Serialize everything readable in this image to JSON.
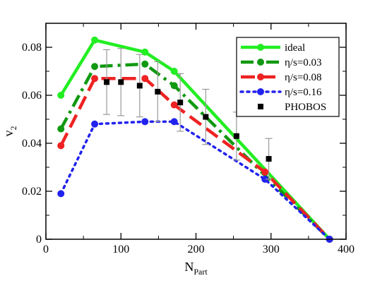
{
  "chart_data": {
    "type": "line",
    "xlabel": "N",
    "xlabel_sub": "Part",
    "ylabel": "v",
    "ylabel_sub": "2",
    "xlim": [
      0,
      400
    ],
    "ylim": [
      0,
      0.09
    ],
    "xticks": [
      0,
      100,
      200,
      300,
      400
    ],
    "xtick_labels": [
      "0",
      "100",
      "200",
      "300",
      "400"
    ],
    "yticks": [
      0,
      0.02,
      0.04,
      0.06,
      0.08
    ],
    "ytick_labels": [
      "0",
      "0.02",
      "0.04",
      "0.06",
      "0.08"
    ],
    "grid": false,
    "legend_position": "top-right",
    "series": [
      {
        "name": "ideal",
        "color": "#22ee22",
        "style": "solid",
        "marker": "circle",
        "x": [
          20,
          65,
          132,
          171,
          378
        ],
        "y": [
          0.06,
          0.083,
          0.078,
          0.07,
          0.0
        ]
      },
      {
        "name": "η/s=0.03",
        "color": "#119911",
        "style": "dashdot",
        "marker": "circle",
        "x": [
          20,
          65,
          132,
          171,
          378
        ],
        "y": [
          0.046,
          0.072,
          0.073,
          0.064,
          0.0
        ]
      },
      {
        "name": "η/s=0.08",
        "color": "#ee2222",
        "style": "dashed",
        "marker": "circle",
        "x": [
          20,
          65,
          132,
          171,
          292,
          378
        ],
        "y": [
          0.039,
          0.067,
          0.067,
          0.056,
          0.028,
          0.0
        ]
      },
      {
        "name": "η/s=0.16",
        "color": "#2222ee",
        "style": "dotted",
        "marker": "circle",
        "x": [
          20,
          65,
          132,
          171,
          292,
          378
        ],
        "y": [
          0.019,
          0.048,
          0.049,
          0.049,
          0.025,
          0.0
        ]
      },
      {
        "name": "PHOBOS",
        "color": "#000000",
        "style": "none",
        "marker": "square",
        "x": [
          81,
          100,
          125,
          149,
          179,
          213,
          254,
          297
        ],
        "y": [
          0.0655,
          0.0655,
          0.064,
          0.0615,
          0.057,
          0.051,
          0.043,
          0.0335
        ],
        "err": [
          0.0135,
          0.014,
          0.013,
          0.0125,
          0.012,
          0.0115,
          0.01,
          0.0085
        ]
      }
    ]
  }
}
